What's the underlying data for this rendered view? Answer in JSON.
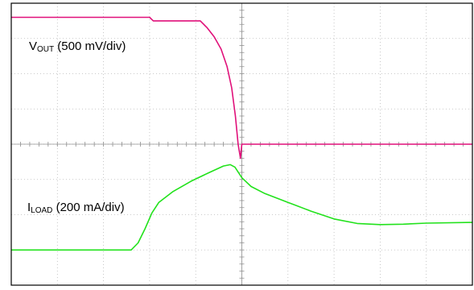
{
  "chart_data": {
    "type": "line",
    "title": "",
    "xlabel": "",
    "ylabel": "",
    "grid": true,
    "divisions": {
      "x": 10,
      "y": 8
    },
    "x_range_div": [
      0,
      10
    ],
    "y_range_div": [
      0,
      8
    ],
    "series": [
      {
        "id": "vout",
        "color": "#e0117a",
        "label": {
          "main": "V",
          "sub": "OUT",
          "rest": " (500 mV/div)"
        },
        "points_div": [
          [
            0.0,
            7.6
          ],
          [
            3.0,
            7.6
          ],
          [
            3.08,
            7.5
          ],
          [
            4.1,
            7.5
          ],
          [
            4.25,
            7.3
          ],
          [
            4.4,
            7.05
          ],
          [
            4.55,
            6.7
          ],
          [
            4.68,
            6.2
          ],
          [
            4.78,
            5.6
          ],
          [
            4.86,
            4.8
          ],
          [
            4.92,
            4.0
          ],
          [
            4.97,
            3.6
          ],
          [
            5.0,
            4.0
          ],
          [
            5.3,
            4.0
          ],
          [
            10.0,
            4.0
          ]
        ]
      },
      {
        "id": "iload",
        "color": "#22e21c",
        "label": {
          "main": "I",
          "sub": "LOAD",
          "rest": " (200 mA/div)"
        },
        "points_div": [
          [
            0.0,
            1.0
          ],
          [
            2.6,
            1.0
          ],
          [
            2.75,
            1.2
          ],
          [
            2.9,
            1.6
          ],
          [
            3.05,
            2.05
          ],
          [
            3.2,
            2.35
          ],
          [
            3.5,
            2.65
          ],
          [
            3.9,
            2.95
          ],
          [
            4.3,
            3.2
          ],
          [
            4.6,
            3.38
          ],
          [
            4.75,
            3.42
          ],
          [
            4.85,
            3.35
          ],
          [
            5.0,
            3.05
          ],
          [
            5.2,
            2.8
          ],
          [
            5.5,
            2.6
          ],
          [
            6.0,
            2.35
          ],
          [
            6.5,
            2.1
          ],
          [
            7.0,
            1.88
          ],
          [
            7.5,
            1.75
          ],
          [
            8.0,
            1.72
          ],
          [
            8.5,
            1.73
          ],
          [
            9.0,
            1.76
          ],
          [
            10.0,
            1.78
          ]
        ]
      }
    ]
  }
}
